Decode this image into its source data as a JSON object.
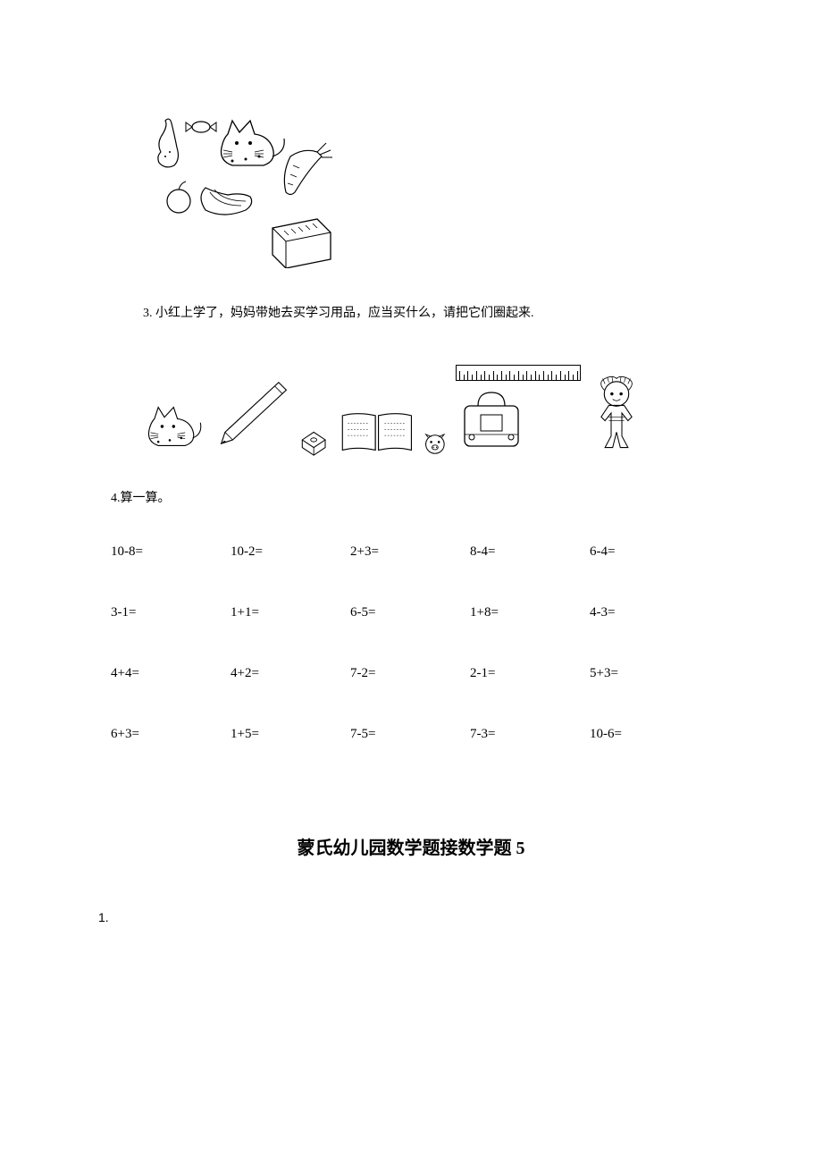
{
  "question3": {
    "number": "3.",
    "text": "小红上学了，妈妈带她去买学习用品，应当买什么，请把它们圈起来."
  },
  "question4": {
    "label": "4.算一算。",
    "rows": [
      [
        "10-8=",
        "10-2=",
        "2+3=",
        "8-4=",
        "6-4="
      ],
      [
        "3-1=",
        "1+1=",
        "6-5=",
        "1+8=",
        "4-3="
      ],
      [
        "4+4=",
        "4+2=",
        "7-2=",
        "2-1=",
        "5+3="
      ],
      [
        "6+3=",
        "1+5=",
        "7-5=",
        "7-3=",
        "10-6="
      ]
    ]
  },
  "section_title": "蒙氏幼儿园数学题接数学题 5",
  "question1": {
    "label": "1."
  },
  "colors": {
    "text": "#000000",
    "background": "#ffffff"
  },
  "icons": {
    "top_group": [
      "pear",
      "candy",
      "cat",
      "carrot",
      "banana",
      "apple",
      "box"
    ],
    "row_group": [
      "cat",
      "pencil",
      "sharpener",
      "book",
      "pig-face",
      "ruler",
      "bag",
      "doll"
    ]
  }
}
